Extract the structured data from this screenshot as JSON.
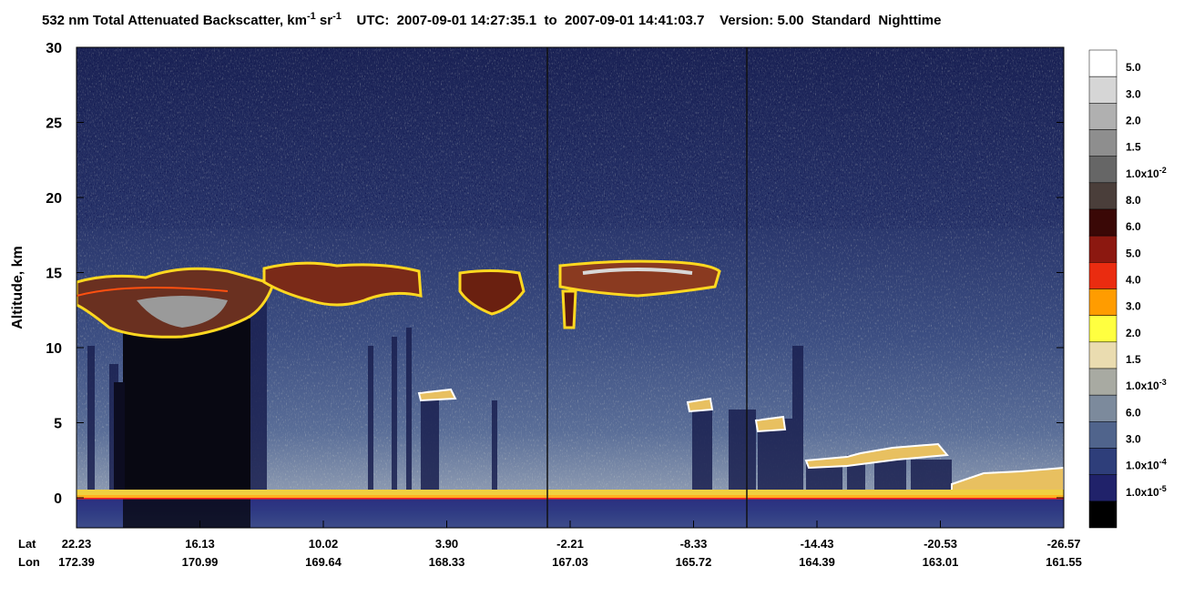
{
  "chart_data": {
    "type": "curtain",
    "title": [
      "532 nm Total Attenuated Backscatter, km",
      "-1",
      " sr",
      "-1",
      "    UTC:  2007-09-01 14:27:35.1  to  2007-09-01 14:41:03.7    Version: 5.00  Standard  Nighttime"
    ],
    "ylabel": "Altitude, km",
    "ylim": [
      -2,
      30
    ],
    "yticks": [
      0,
      5,
      10,
      15,
      20,
      25,
      30
    ],
    "x_row_labels": [
      "Lat",
      "Lon"
    ],
    "lat": [
      22.23,
      16.13,
      10.02,
      {
        "value": 3.9,
        "label": "3.90"
      },
      -2.21,
      -8.33,
      -14.43,
      -20.53,
      -26.57
    ],
    "lon": [
      172.39,
      170.99,
      169.64,
      168.33,
      167.03,
      165.72,
      164.39,
      163.01,
      161.55
    ],
    "colorbar": {
      "colors": [
        "#ffffff",
        "#d6d6d6",
        "#b0b0b0",
        "#8e8e8e",
        "#666666",
        "#4a3e3a",
        "#3a0806",
        "#8c1810",
        "#ea2c10",
        "#ff9c00",
        "#ffff40",
        "#eadcb0",
        "#a8aaa2",
        "#7c8a9c",
        "#50648c",
        "#2e3e7a",
        "#20226a",
        "#000000"
      ],
      "labels": [
        {
          "base": "5.0"
        },
        {
          "base": "3.0"
        },
        {
          "base": "2.0"
        },
        {
          "base": "1.5"
        },
        {
          "base": "1.0x10",
          "exp": "-2"
        },
        {
          "base": "8.0"
        },
        {
          "base": "6.0"
        },
        {
          "base": "5.0"
        },
        {
          "base": "4.0"
        },
        {
          "base": "3.0"
        },
        {
          "base": "2.0"
        },
        {
          "base": "1.5"
        },
        {
          "base": "1.0x10",
          "exp": "-3"
        },
        {
          "base": "6.0"
        },
        {
          "base": "3.0"
        },
        {
          "base": "1.0x10",
          "exp": "-4"
        },
        {
          "base": "1.0x10",
          "exp": "-5"
        }
      ]
    }
  }
}
